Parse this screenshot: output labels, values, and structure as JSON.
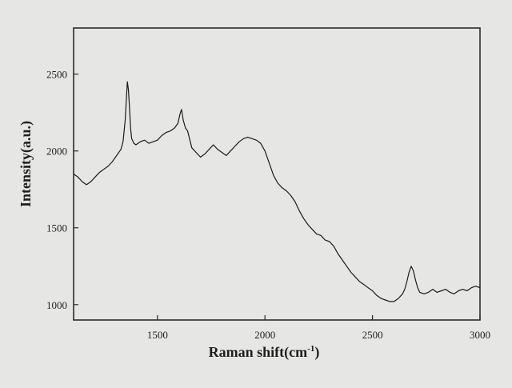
{
  "chart_data": {
    "type": "line",
    "title": "",
    "xlabel": "Raman shift(cm",
    "xlabel_superscript": "-1",
    "xlabel_suffix": ")",
    "ylabel": "Intensity(a.u.)",
    "xlim": [
      1110,
      3000
    ],
    "ylim": [
      900,
      2800
    ],
    "x_ticks": [
      1500,
      2000,
      2500,
      3000
    ],
    "y_ticks": [
      1000,
      1500,
      2000,
      2500
    ],
    "grid": false,
    "legend": "none",
    "line_color": "#1a1a1a",
    "series": [
      {
        "x": [
          1110,
          1130,
          1150,
          1170,
          1190,
          1210,
          1230,
          1250,
          1270,
          1290,
          1310,
          1330,
          1340,
          1350,
          1355,
          1360,
          1365,
          1370,
          1375,
          1380,
          1390,
          1400,
          1420,
          1440,
          1460,
          1480,
          1500,
          1520,
          1540,
          1560,
          1580,
          1595,
          1605,
          1612,
          1620,
          1630,
          1640,
          1660,
          1680,
          1700,
          1720,
          1740,
          1760,
          1780,
          1800,
          1820,
          1840,
          1860,
          1880,
          1900,
          1920,
          1940,
          1960,
          1980,
          2000,
          2020,
          2040,
          2060,
          2080,
          2100,
          2120,
          2140,
          2160,
          2180,
          2200,
          2220,
          2240,
          2260,
          2280,
          2300,
          2320,
          2340,
          2360,
          2380,
          2400,
          2420,
          2440,
          2460,
          2480,
          2500,
          2520,
          2540,
          2560,
          2580,
          2600,
          2620,
          2640,
          2650,
          2660,
          2670,
          2680,
          2690,
          2700,
          2710,
          2720,
          2740,
          2760,
          2780,
          2800,
          2820,
          2840,
          2860,
          2880,
          2900,
          2920,
          2940,
          2960,
          2980,
          3000
        ],
        "values": [
          1850,
          1830,
          1800,
          1780,
          1800,
          1830,
          1860,
          1880,
          1900,
          1930,
          1970,
          2010,
          2060,
          2200,
          2330,
          2450,
          2400,
          2280,
          2150,
          2080,
          2050,
          2040,
          2060,
          2070,
          2050,
          2060,
          2070,
          2100,
          2120,
          2130,
          2150,
          2180,
          2240,
          2270,
          2200,
          2150,
          2130,
          2020,
          1990,
          1960,
          1980,
          2010,
          2040,
          2010,
          1990,
          1970,
          2000,
          2030,
          2060,
          2080,
          2090,
          2080,
          2070,
          2050,
          2000,
          1920,
          1840,
          1790,
          1760,
          1740,
          1710,
          1670,
          1610,
          1560,
          1520,
          1490,
          1460,
          1450,
          1420,
          1410,
          1380,
          1330,
          1290,
          1250,
          1210,
          1180,
          1150,
          1130,
          1110,
          1090,
          1060,
          1040,
          1030,
          1020,
          1020,
          1040,
          1070,
          1100,
          1150,
          1210,
          1250,
          1220,
          1160,
          1110,
          1080,
          1070,
          1080,
          1100,
          1080,
          1090,
          1100,
          1080,
          1070,
          1090,
          1100,
          1090,
          1110,
          1120,
          1110
        ]
      }
    ]
  }
}
